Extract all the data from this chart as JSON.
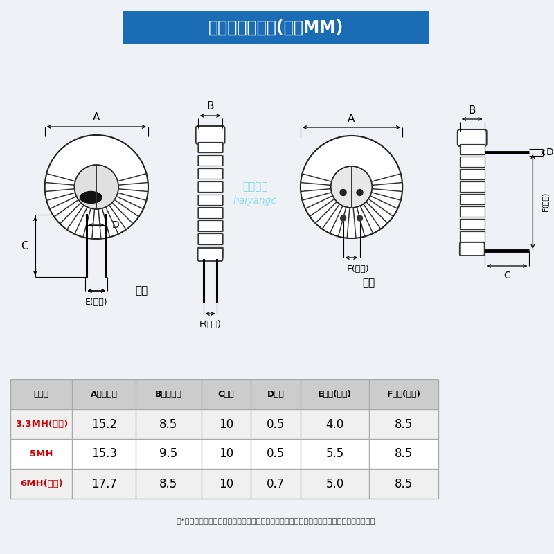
{
  "title": "产品尺寸结构图(单位MM)",
  "title_bg": "#1a6db5",
  "title_color": "#ffffff",
  "bg_color": "#eef2f7",
  "table_header_display": [
    "电感量",
    "A成品直径",
    "B成品厚度",
    "C脚长",
    "D线径",
    "E脚距(可调)",
    "F脚距(可调)"
  ],
  "table_rows": [
    [
      "3.3MH(卧式)",
      "15.2",
      "8.5",
      "10",
      "0.5",
      "4.0",
      "8.5"
    ],
    [
      "5MH",
      "15.3",
      "9.5",
      "10",
      "0.5",
      "5.5",
      "8.5"
    ],
    [
      "6MH(卧式)",
      "17.7",
      "8.5",
      "10",
      "0.7",
      "5.0",
      "8.5"
    ]
  ],
  "footnote": "（*以上数据为手工测量，由于测量方式不同，略有误差，仅供参考，实际尺寸以实物为准！）",
  "table_header_bg": "#cccccc",
  "table_row_bg": [
    "#f0f0f0",
    "#ffffff",
    "#f0f0f0"
  ],
  "watermark_text": "海洋电子",
  "watermark_sub": "haiyangc",
  "label_lishi": "立式",
  "label_woshi": "卧式"
}
